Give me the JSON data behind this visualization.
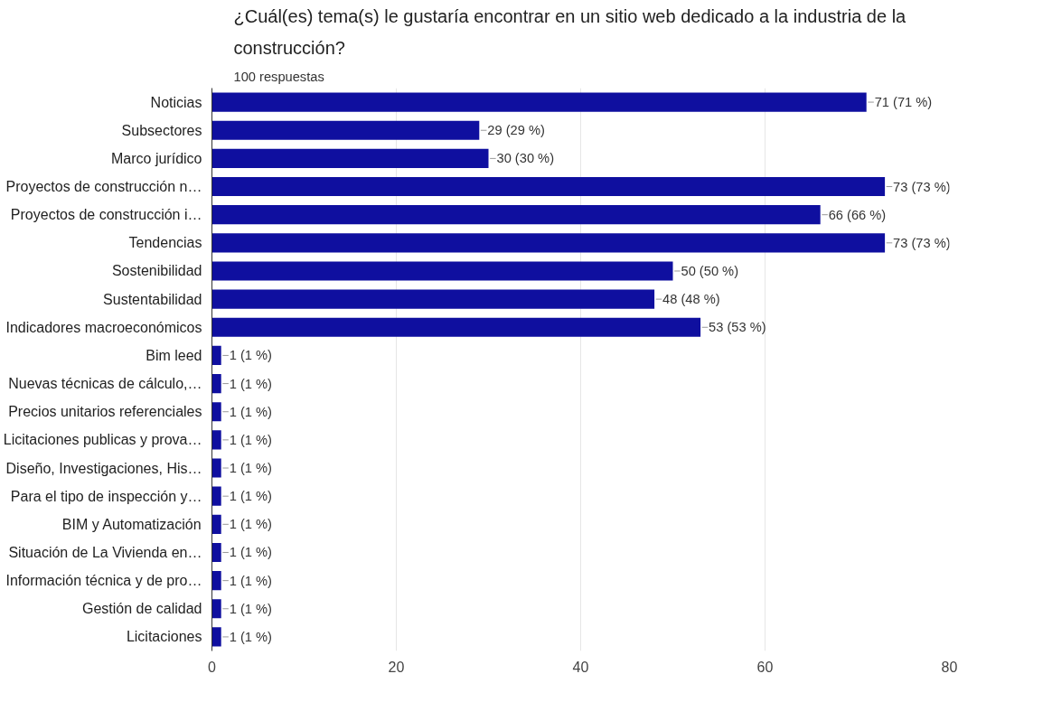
{
  "chart_data": {
    "type": "bar",
    "orientation": "horizontal",
    "title": "¿Cuál(es) tema(s) le gustaría encontrar en un sitio web dedicado a la industria de la construcción?",
    "subtitle": "100 respuestas",
    "categories": [
      "Noticias",
      "Subsectores",
      "Marco jurídico",
      "Proyectos de construcción n…",
      "Proyectos de construcción i…",
      "Tendencias",
      "Sostenibilidad",
      "Sustentabilidad",
      "Indicadores macroeconómicos",
      "Bim leed",
      "Nuevas técnicas de cálculo,…",
      "Precios unitarios referenciales",
      "Licitaciones publicas y prova…",
      "Diseño, Investigaciones, His…",
      "Para el tipo de inspección y…",
      "BIM y Automatización",
      "Situación de La Vivienda en…",
      "Información técnica y de pro…",
      "Gestión de calidad",
      "Licitaciones"
    ],
    "values": [
      71,
      29,
      30,
      73,
      66,
      73,
      50,
      48,
      53,
      1,
      1,
      1,
      1,
      1,
      1,
      1,
      1,
      1,
      1,
      1
    ],
    "value_labels": [
      "71 (71 %)",
      "29 (29 %)",
      "30 (30 %)",
      "73 (73 %)",
      "66 (66 %)",
      "73 (73 %)",
      "50 (50 %)",
      "48 (48 %)",
      "53 (53 %)",
      "1 (1 %)",
      "1 (1 %)",
      "1 (1 %)",
      "1 (1 %)",
      "1 (1 %)",
      "1 (1 %)",
      "1 (1 %)",
      "1 (1 %)",
      "1 (1 %)",
      "1 (1 %)",
      "1 (1 %)"
    ],
    "color": "#0f0f9f",
    "xlim": [
      0,
      80
    ],
    "xticks": [
      0,
      20,
      40,
      60,
      80
    ],
    "grid": "x"
  }
}
